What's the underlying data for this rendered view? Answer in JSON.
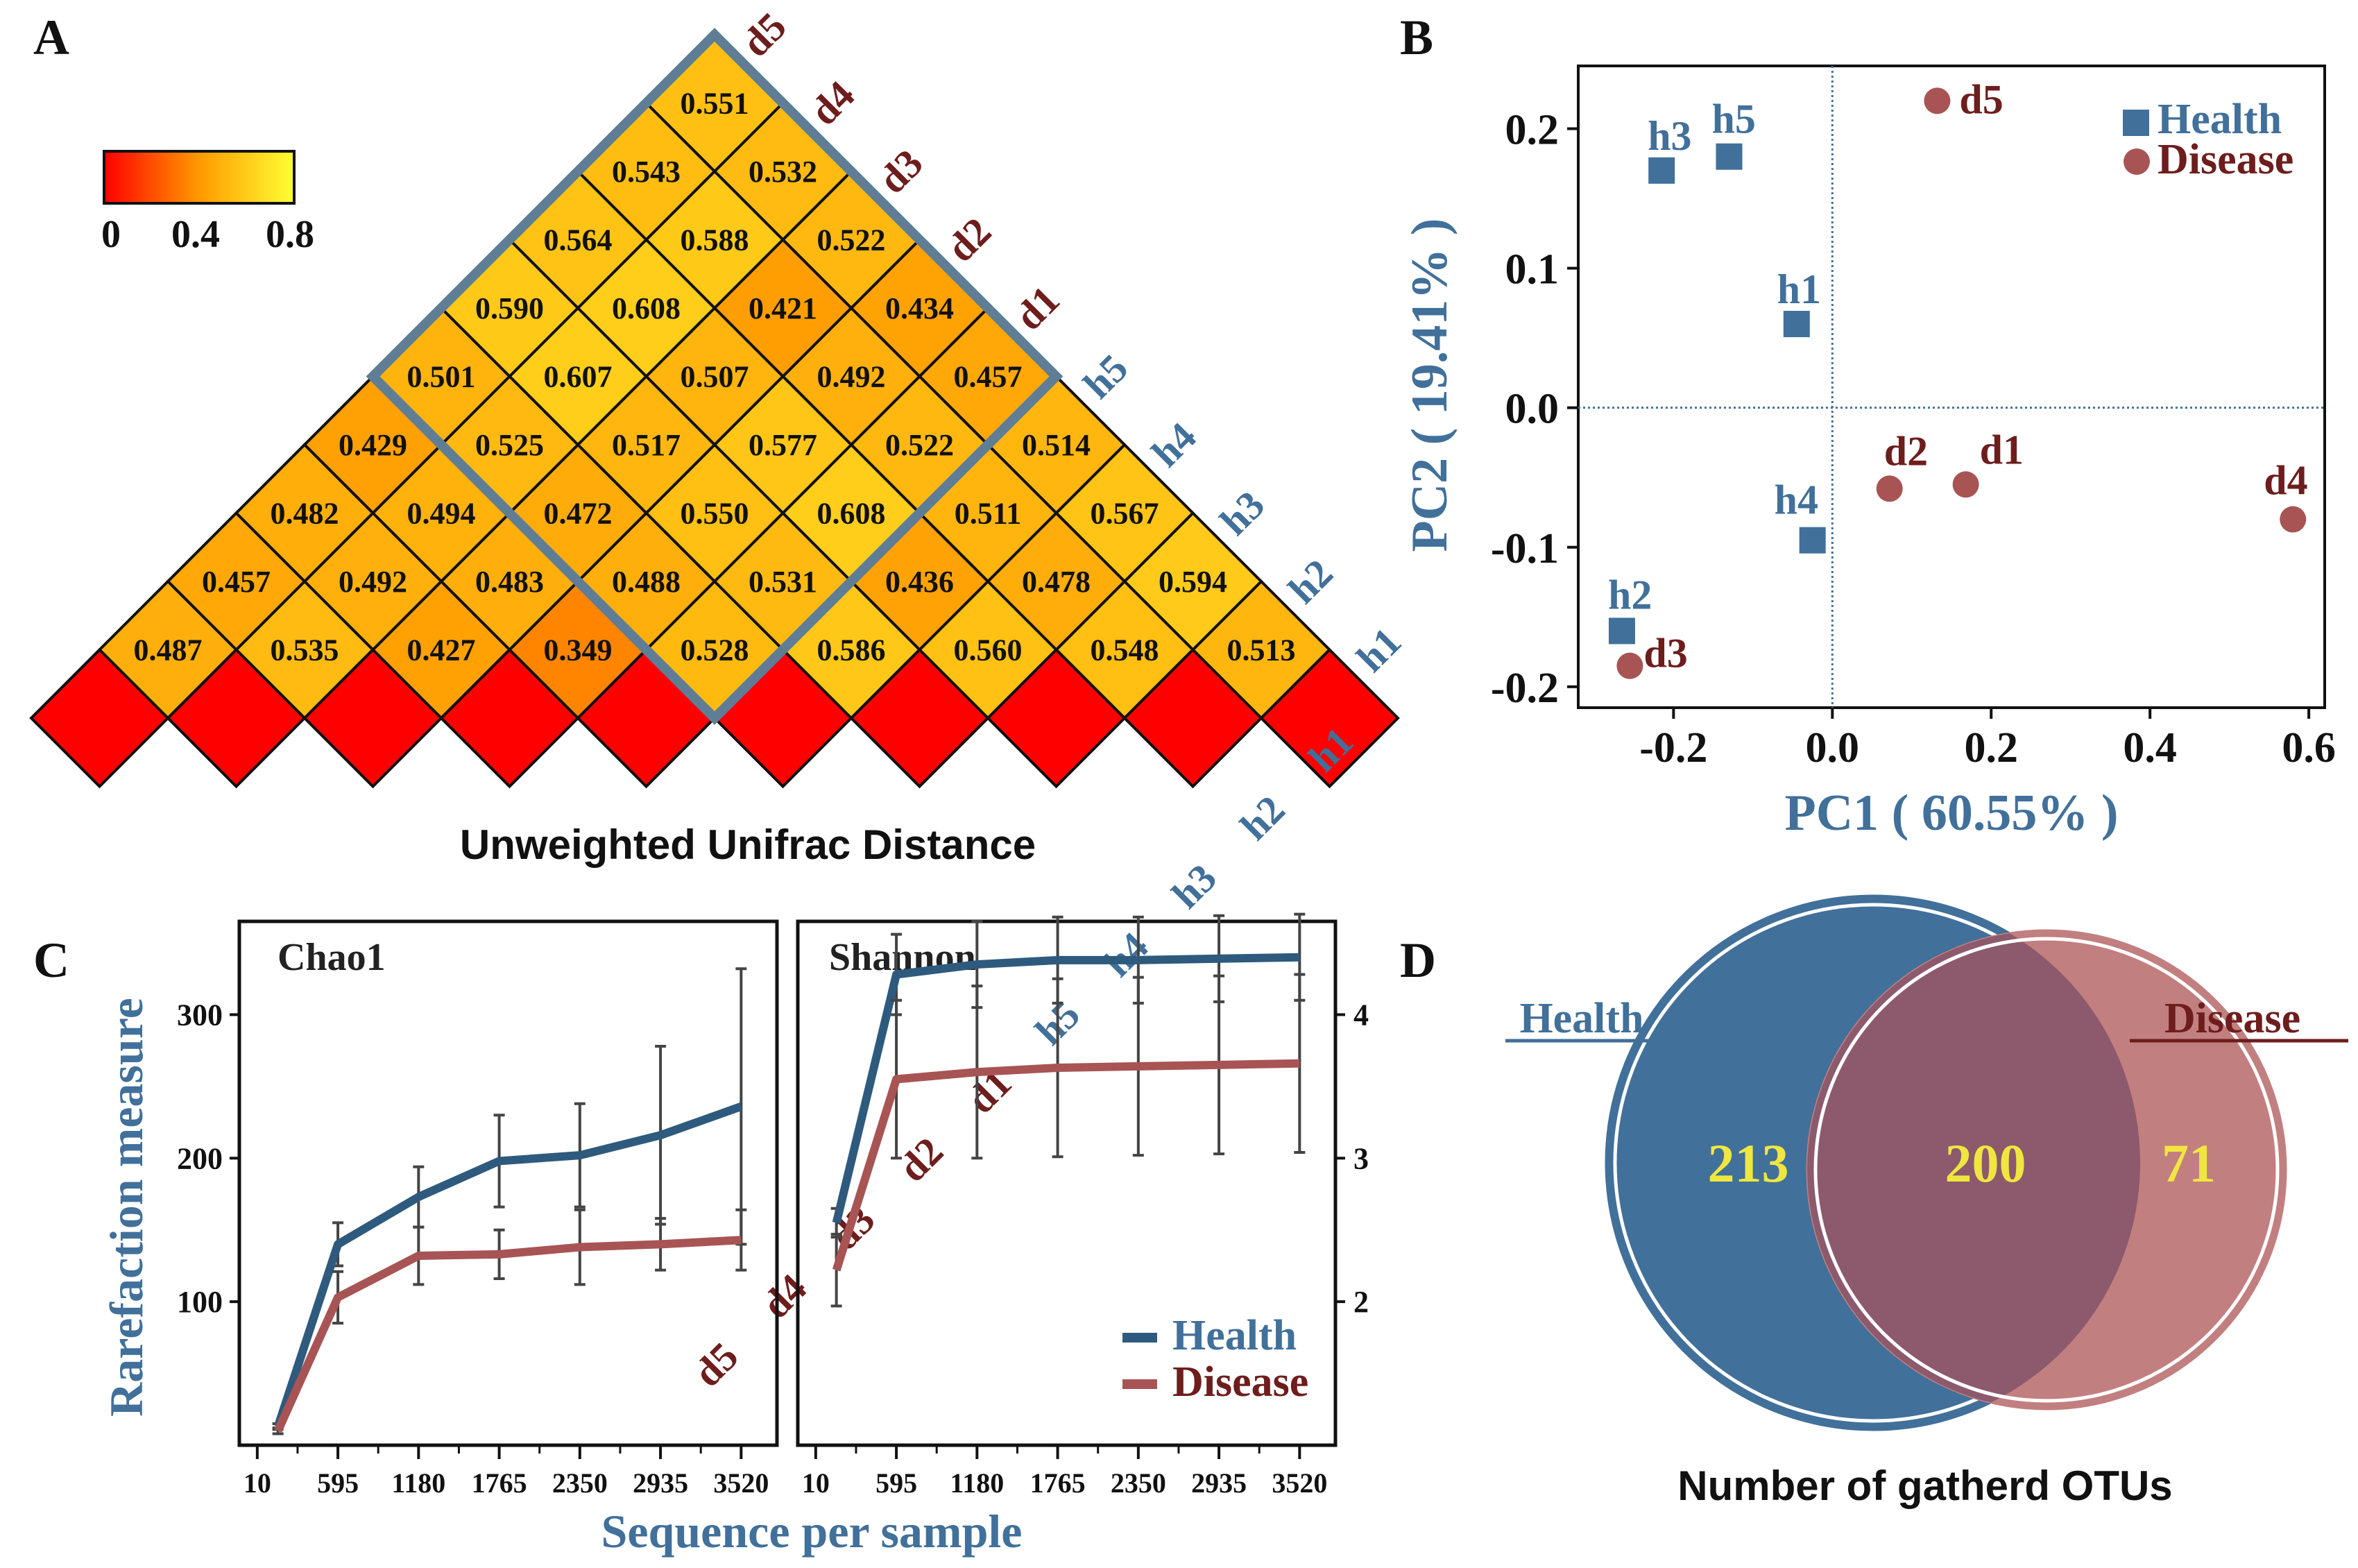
{
  "figure": {
    "panel_letters": [
      "A",
      "B",
      "C",
      "D"
    ]
  },
  "colors": {
    "health": "#41709a",
    "disease": "#a85454",
    "disease_label": "#6e1d1d",
    "venn_overlap": "#8c5a6c",
    "venn_numbers": "#f0e640",
    "frame": "#5f7e96"
  },
  "chart_data": [
    {
      "panel": "A",
      "type": "heatmap",
      "title": "Unweighted Unifrac Distance",
      "samples": [
        "h1",
        "h2",
        "h3",
        "h4",
        "h5",
        "d1",
        "d2",
        "d3",
        "d4",
        "d5"
      ],
      "left_labels": [
        "h1",
        "h2",
        "h3",
        "h4",
        "h5",
        "d1",
        "d2",
        "d3",
        "d4",
        "d5"
      ],
      "right_labels": [
        "h1",
        "h2",
        "h3",
        "h4",
        "h5",
        "d1",
        "d2",
        "d3",
        "d4",
        "d5"
      ],
      "diagonal_value": 0,
      "rows": [
        {
          "label": "h1",
          "values": [
            "0.513",
            "0.594",
            "0.567",
            "0.514",
            "0.457",
            "0.434",
            "0.522",
            "0.532",
            "0.551"
          ]
        },
        {
          "label": "h2",
          "values": [
            "0.548",
            "0.478",
            "0.511",
            "0.522",
            "0.492",
            "0.421",
            "0.588",
            "0.543"
          ]
        },
        {
          "label": "h3",
          "values": [
            "0.560",
            "0.436",
            "0.608",
            "0.577",
            "0.507",
            "0.608",
            "0.564"
          ]
        },
        {
          "label": "h4",
          "values": [
            "0.586",
            "0.531",
            "0.550",
            "0.517",
            "0.607",
            "0.590"
          ]
        },
        {
          "label": "h5",
          "values": [
            "0.528",
            "0.488",
            "0.472",
            "0.525",
            "0.501"
          ]
        },
        {
          "label": "d1",
          "values": [
            "0.349",
            "0.483",
            "0.494",
            "0.429"
          ]
        },
        {
          "label": "d2",
          "values": [
            "0.427",
            "0.492",
            "0.482"
          ]
        },
        {
          "label": "d3",
          "values": [
            "0.535",
            "0.457"
          ]
        },
        {
          "label": "d4",
          "values": [
            "0.487"
          ]
        }
      ],
      "colorbar": {
        "min": 0,
        "max": 0.8,
        "ticks": [
          "0",
          "0.4",
          "0.8"
        ],
        "colors": [
          "#ff0000",
          "#ff9900",
          "#ffff33"
        ]
      }
    },
    {
      "panel": "B",
      "type": "scatter",
      "xlabel": "PC1 ( 60.55% )",
      "ylabel": "PC2 ( 19.41% )",
      "xlim": [
        -0.32,
        0.62
      ],
      "ylim": [
        -0.215,
        0.245
      ],
      "xticks": [
        "-0.2",
        "0.0",
        "0.2",
        "0.4",
        "0.6"
      ],
      "yticks": [
        "0.2",
        "0.1",
        "0.0",
        "-0.1",
        "-0.2"
      ],
      "legend": {
        "position": "top-right",
        "items": [
          "Health",
          "Disease"
        ]
      },
      "series": [
        {
          "name": "Health",
          "marker": "square",
          "points": [
            {
              "label": "h1",
              "x": -0.045,
              "y": 0.06
            },
            {
              "label": "h2",
              "x": -0.265,
              "y": -0.16
            },
            {
              "label": "h3",
              "x": -0.215,
              "y": 0.17
            },
            {
              "label": "h4",
              "x": -0.025,
              "y": -0.095
            },
            {
              "label": "h5",
              "x": -0.13,
              "y": 0.18
            }
          ]
        },
        {
          "name": "Disease",
          "marker": "circle",
          "points": [
            {
              "label": "d1",
              "x": 0.168,
              "y": -0.055
            },
            {
              "label": "d2",
              "x": 0.072,
              "y": -0.058
            },
            {
              "label": "d3",
              "x": -0.255,
              "y": -0.185
            },
            {
              "label": "d4",
              "x": 0.58,
              "y": -0.08
            },
            {
              "label": "d5",
              "x": 0.132,
              "y": 0.22
            }
          ]
        }
      ]
    },
    {
      "panel": "C",
      "type": "line",
      "xlabel": "Sequence per sample",
      "ylabel": "Rarefaction measure",
      "categories": [
        "10",
        "595",
        "1180",
        "1765",
        "2350",
        "2935",
        "3520"
      ],
      "legend": {
        "position": "bottom-right",
        "items": [
          "Health",
          "Disease"
        ]
      },
      "subplots": [
        {
          "title": "Chao1",
          "ylim": [
            0,
            365
          ],
          "yticks": [
            "100",
            "200",
            "300"
          ],
          "x": [
            160,
            595,
            1180,
            1765,
            2350,
            2935,
            3520
          ],
          "series": [
            {
              "name": "Health",
              "values": [
                13,
                140,
                173,
                198,
                202,
                216,
                236
              ],
              "errors": [
                2,
                15,
                21,
                32,
                36,
                62,
                96
              ]
            },
            {
              "name": "Disease",
              "values": [
                10,
                103,
                132,
                133,
                138,
                140,
                143
              ],
              "errors": [
                2,
                18,
                20,
                17,
                26,
                18,
                21
              ]
            }
          ]
        },
        {
          "title": "Shannon",
          "ylim": [
            1,
            4.65
          ],
          "yticks": [
            "2",
            "3",
            "4"
          ],
          "x": [
            160,
            595,
            1180,
            1765,
            2350,
            2935,
            3520
          ],
          "series": [
            {
              "name": "Health",
              "values": [
                2.55,
                4.28,
                4.35,
                4.38,
                4.38,
                4.39,
                4.4
              ],
              "errors": [
                0.1,
                0.28,
                0.3,
                0.3,
                0.3,
                0.3,
                0.3
              ]
            },
            {
              "name": "Disease",
              "values": [
                2.22,
                3.55,
                3.6,
                3.63,
                3.64,
                3.65,
                3.66
              ],
              "errors": [
                0.25,
                0.55,
                0.6,
                0.62,
                0.62,
                0.62,
                0.62
              ]
            }
          ]
        }
      ]
    },
    {
      "panel": "D",
      "type": "venn",
      "title": "Number of gatherd OTUs",
      "sets": [
        {
          "name": "Health",
          "only": "213"
        },
        {
          "name": "Disease",
          "only": "71"
        }
      ],
      "intersection": "200"
    }
  ]
}
